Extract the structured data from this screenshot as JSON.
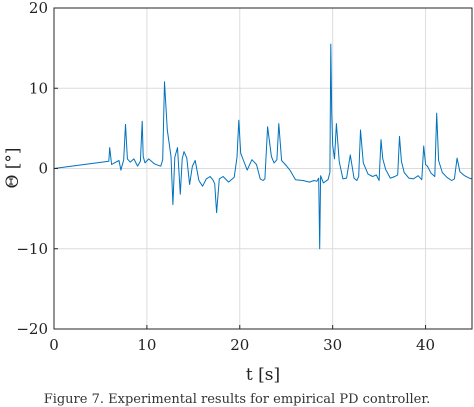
{
  "caption": "Figure 7. Experimental results for empirical PD controller.",
  "chart_data": {
    "type": "line",
    "xlabel": "t [s]",
    "ylabel": "Θ [°]",
    "xlim": [
      0,
      45
    ],
    "ylim": [
      -20,
      20
    ],
    "xticks": [
      0,
      10,
      20,
      30,
      40
    ],
    "yticks": [
      -20,
      -10,
      0,
      10,
      20
    ],
    "xtick_labels": [
      "0",
      "10",
      "20",
      "30",
      "40"
    ],
    "ytick_labels": [
      "−20",
      "−10",
      "0",
      "10",
      "20"
    ],
    "grid": true,
    "series": [
      {
        "color": "#0072bd",
        "x": [
          0,
          5.9,
          6.0,
          6.2,
          6.5,
          7.0,
          7.2,
          7.5,
          7.7,
          7.9,
          8.2,
          8.6,
          9.0,
          9.3,
          9.5,
          9.6,
          9.8,
          10.2,
          10.8,
          11.2,
          11.5,
          11.7,
          11.9,
          12.2,
          12.6,
          12.8,
          13.0,
          13.3,
          13.6,
          13.8,
          14.0,
          14.3,
          14.6,
          14.9,
          15.2,
          15.6,
          16.0,
          16.4,
          16.8,
          17.1,
          17.3,
          17.5,
          17.8,
          18.2,
          18.8,
          19.4,
          19.7,
          19.9,
          20.1,
          20.4,
          20.8,
          21.3,
          21.8,
          22.2,
          22.5,
          22.7,
          23.0,
          23.4,
          23.7,
          24.0,
          24.2,
          24.5,
          24.9,
          25.4,
          26.0,
          26.8,
          27.5,
          28.0,
          28.3,
          28.5,
          28.6,
          28.7,
          29.0,
          29.5,
          29.7,
          29.8,
          29.9,
          30.0,
          30.2,
          30.4,
          30.7,
          31.1,
          31.5,
          31.9,
          32.3,
          32.6,
          32.8,
          33.0,
          33.3,
          33.8,
          34.3,
          34.7,
          35.0,
          35.2,
          35.4,
          35.7,
          36.2,
          36.7,
          37.0,
          37.2,
          37.4,
          37.7,
          38.2,
          38.7,
          39.2,
          39.6,
          39.8,
          40.0,
          40.2,
          40.6,
          41.0,
          41.2,
          41.4,
          41.8,
          42.3,
          42.8,
          43.1,
          43.4,
          43.7,
          44.2,
          44.7,
          45.0
        ],
        "y": [
          0,
          0.9,
          2.6,
          0.5,
          0.7,
          1.0,
          -0.2,
          1.1,
          5.5,
          1.2,
          0.8,
          1.2,
          0.3,
          0.9,
          5.9,
          1.5,
          0.7,
          1.2,
          0.6,
          0.4,
          0.3,
          1.1,
          10.8,
          4.8,
          1.5,
          -4.5,
          1.4,
          2.6,
          -3.2,
          1.2,
          2.1,
          1.3,
          -2.0,
          0.3,
          1.0,
          -1.5,
          -2.2,
          -1.3,
          -1.0,
          -1.4,
          -1.9,
          -5.5,
          -1.3,
          -1.0,
          -1.7,
          -1.1,
          1.4,
          6.0,
          1.9,
          1.0,
          -0.2,
          1.1,
          0.5,
          -1.3,
          -1.5,
          -1.3,
          5.2,
          1.5,
          0.7,
          1.1,
          5.6,
          1.0,
          0.5,
          -0.2,
          -1.4,
          -1.5,
          -1.7,
          -1.5,
          -1.6,
          -1.2,
          -10.0,
          -0.9,
          -1.8,
          -1.4,
          -0.5,
          15.5,
          7.0,
          2.9,
          1.2,
          5.6,
          0.9,
          -1.3,
          -1.2,
          1.7,
          -1.2,
          -1.5,
          -1.0,
          4.8,
          0.7,
          -0.7,
          -1.0,
          -0.8,
          -1.5,
          3.6,
          1.2,
          -0.1,
          -1.2,
          -1.0,
          -0.8,
          4.0,
          0.9,
          -0.5,
          -1.2,
          -1.3,
          -0.9,
          -1.4,
          2.8,
          0.5,
          0.3,
          -0.6,
          -1.0,
          6.9,
          1.0,
          -0.5,
          -1.1,
          -1.5,
          -1.3,
          1.3,
          -0.4,
          -0.9,
          -1.2,
          -1.3
        ]
      }
    ]
  }
}
